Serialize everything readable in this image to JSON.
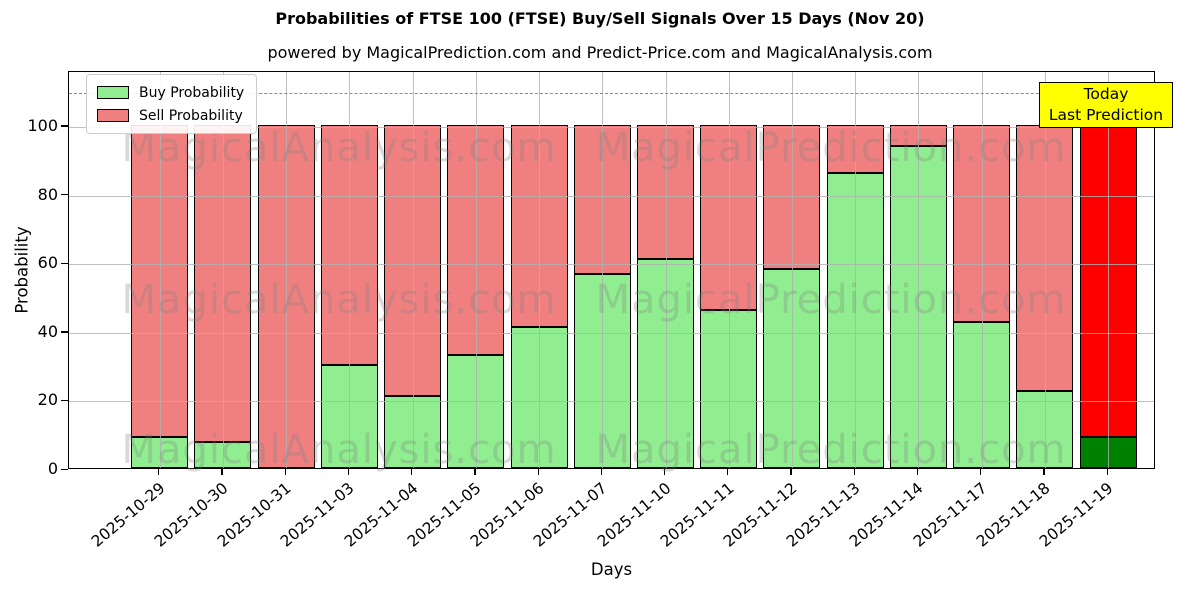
{
  "title": "Probabilities of FTSE 100 (FTSE) Buy/Sell Signals Over 15 Days (Nov 20)",
  "subtitle": "powered by MagicalPrediction.com and Predict-Price.com and MagicalAnalysis.com",
  "axes": {
    "xlabel": "Days",
    "ylabel": "Probability",
    "yticks": [
      0,
      20,
      40,
      60,
      80,
      100
    ]
  },
  "legend": {
    "items": [
      {
        "label": "Buy Probability",
        "color": "#90ee90"
      },
      {
        "label": "Sell Probability",
        "color": "#f08080"
      }
    ]
  },
  "annotation": {
    "line1": "Today",
    "line2": "Last Prediction",
    "bg_color": "#ffff00"
  },
  "watermark": {
    "texts": [
      "MagicalAnalysis.com",
      "MagicalPrediction.com"
    ],
    "color": "rgba(128,128,128,0.3)"
  },
  "chart_data": {
    "type": "bar",
    "stacked": true,
    "title": "Probabilities of FTSE 100 (FTSE) Buy/Sell Signals Over 15 Days (Nov 20)",
    "xlabel": "Days",
    "ylabel": "Probability",
    "ylim": [
      0,
      116
    ],
    "grid": true,
    "legend_position": "upper left",
    "dashed_line_y": 110,
    "categories": [
      "2025-10-29",
      "2025-10-30",
      "2025-10-31",
      "2025-11-03",
      "2025-11-04",
      "2025-11-05",
      "2025-11-06",
      "2025-11-07",
      "2025-11-10",
      "2025-11-11",
      "2025-11-12",
      "2025-11-13",
      "2025-11-14",
      "2025-11-17",
      "2025-11-18",
      "2025-11-19"
    ],
    "series": [
      {
        "name": "Buy Probability",
        "color": "#90ee90",
        "values": [
          9,
          7.5,
          0,
          30,
          21,
          33,
          41,
          56.5,
          61,
          46,
          58,
          86,
          94,
          42.5,
          22.5,
          9
        ]
      },
      {
        "name": "Sell Probability",
        "color": "#f08080",
        "values": [
          91,
          92.5,
          100,
          70,
          79,
          67,
          59,
          43.5,
          39,
          54,
          42,
          14,
          6,
          57.5,
          77.5,
          91
        ]
      }
    ],
    "today": {
      "index": 15,
      "category": "2025-11-19",
      "buy_color": "#008000",
      "sell_color": "#ff0000"
    }
  }
}
